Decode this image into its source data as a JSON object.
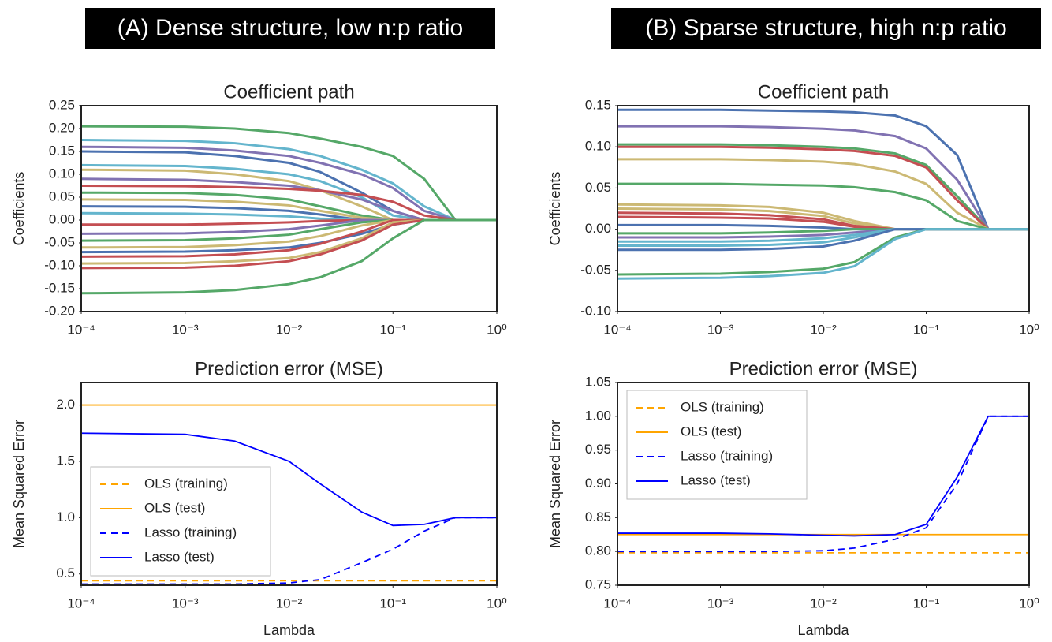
{
  "panel_titles": [
    "(A) Dense structure, low n:p ratio",
    "(B) Sparse structure, high n:p ratio"
  ],
  "chart_data": [
    {
      "type": "line",
      "title": "Coefficient path",
      "ylabel": "Coefficients",
      "xscale": "log",
      "xlim": [
        0.0001,
        1
      ],
      "xticks": [
        {
          "value": 0.0001,
          "label": "10⁻⁴"
        },
        {
          "value": 0.001,
          "label": "10⁻³"
        },
        {
          "value": 0.01,
          "label": "10⁻²"
        },
        {
          "value": 0.1,
          "label": "10⁻¹"
        },
        {
          "value": 1,
          "label": "10⁰"
        }
      ],
      "ylim": [
        -0.2,
        0.25
      ],
      "yticks": [
        {
          "value": -0.2,
          "label": "-0.20"
        },
        -0.15,
        {
          "value": -0.1,
          "label": "-0.10"
        },
        -0.05,
        {
          "value": 0,
          "label": "0.00"
        },
        0.05,
        {
          "value": 0.1,
          "label": "0.10"
        },
        0.15,
        {
          "value": 0.2,
          "label": "0.20"
        },
        0.25
      ],
      "x": [
        0.0001,
        0.001,
        0.003,
        0.01,
        0.02,
        0.05,
        0.1,
        0.2,
        0.4,
        1
      ],
      "series": [
        {
          "color": "#55a868",
          "values": [
            0.205,
            0.204,
            0.2,
            0.19,
            0.178,
            0.16,
            0.14,
            0.09,
            0,
            0
          ]
        },
        {
          "color": "#64b5cd",
          "values": [
            0.175,
            0.173,
            0.168,
            0.155,
            0.14,
            0.11,
            0.08,
            0.03,
            0,
            0
          ]
        },
        {
          "color": "#8172b2",
          "values": [
            0.16,
            0.158,
            0.152,
            0.14,
            0.125,
            0.1,
            0.07,
            0.02,
            0,
            0
          ]
        },
        {
          "color": "#4c72b0",
          "values": [
            0.15,
            0.148,
            0.14,
            0.125,
            0.105,
            0.06,
            0.02,
            0,
            0,
            0
          ]
        },
        {
          "color": "#64b5cd",
          "values": [
            0.12,
            0.118,
            0.112,
            0.1,
            0.085,
            0.05,
            0.01,
            0,
            0,
            0
          ]
        },
        {
          "color": "#ccb974",
          "values": [
            0.11,
            0.108,
            0.1,
            0.085,
            0.065,
            0.03,
            0,
            0,
            0,
            0
          ]
        },
        {
          "color": "#8172b2",
          "values": [
            0.09,
            0.088,
            0.083,
            0.075,
            0.065,
            0.045,
            0.02,
            0,
            0,
            0
          ]
        },
        {
          "color": "#c44e52",
          "values": [
            0.075,
            0.074,
            0.072,
            0.068,
            0.064,
            0.055,
            0.04,
            0.01,
            0,
            0
          ]
        },
        {
          "color": "#55a868",
          "values": [
            0.06,
            0.059,
            0.055,
            0.045,
            0.03,
            0.01,
            0,
            0,
            0,
            0
          ]
        },
        {
          "color": "#ccb974",
          "values": [
            0.045,
            0.044,
            0.04,
            0.032,
            0.02,
            0.005,
            0,
            0,
            0,
            0
          ]
        },
        {
          "color": "#4c72b0",
          "values": [
            0.03,
            0.029,
            0.026,
            0.02,
            0.012,
            0,
            0,
            0,
            0,
            0
          ]
        },
        {
          "color": "#64b5cd",
          "values": [
            0.015,
            0.014,
            0.012,
            0.008,
            0.003,
            0,
            0,
            0,
            0,
            0
          ]
        },
        {
          "color": "#c44e52",
          "values": [
            -0.01,
            -0.01,
            -0.008,
            -0.005,
            -0.002,
            0,
            0,
            0,
            0,
            0
          ]
        },
        {
          "color": "#8172b2",
          "values": [
            -0.03,
            -0.029,
            -0.026,
            -0.02,
            -0.012,
            0,
            0,
            0,
            0,
            0
          ]
        },
        {
          "color": "#55a868",
          "values": [
            -0.045,
            -0.044,
            -0.04,
            -0.032,
            -0.02,
            -0.005,
            0,
            0,
            0,
            0
          ]
        },
        {
          "color": "#ccb974",
          "values": [
            -0.06,
            -0.059,
            -0.055,
            -0.047,
            -0.035,
            -0.012,
            0,
            0,
            0,
            0
          ]
        },
        {
          "color": "#4c72b0",
          "values": [
            -0.07,
            -0.069,
            -0.066,
            -0.06,
            -0.05,
            -0.03,
            -0.01,
            0,
            0,
            0
          ]
        },
        {
          "color": "#c44e52",
          "values": [
            -0.08,
            -0.079,
            -0.075,
            -0.066,
            -0.052,
            -0.025,
            0,
            0,
            0,
            0
          ]
        },
        {
          "color": "#ccb974",
          "values": [
            -0.095,
            -0.094,
            -0.09,
            -0.083,
            -0.07,
            -0.04,
            -0.005,
            0,
            0,
            0
          ]
        },
        {
          "color": "#c44e52",
          "values": [
            -0.105,
            -0.104,
            -0.1,
            -0.09,
            -0.075,
            -0.045,
            -0.01,
            0,
            0,
            0
          ]
        },
        {
          "color": "#55a868",
          "values": [
            -0.16,
            -0.158,
            -0.153,
            -0.14,
            -0.125,
            -0.09,
            -0.04,
            0,
            0,
            0
          ]
        }
      ]
    },
    {
      "type": "line",
      "title": "Coefficient path",
      "ylabel": "Coefficients",
      "xscale": "log",
      "xlim": [
        0.0001,
        1
      ],
      "xticks": [
        {
          "value": 0.0001,
          "label": "10⁻⁴"
        },
        {
          "value": 0.001,
          "label": "10⁻³"
        },
        {
          "value": 0.01,
          "label": "10⁻²"
        },
        {
          "value": 0.1,
          "label": "10⁻¹"
        },
        {
          "value": 1,
          "label": "10⁰"
        }
      ],
      "ylim": [
        -0.1,
        0.15
      ],
      "yticks": [
        {
          "value": -0.1,
          "label": "-0.10"
        },
        -0.05,
        {
          "value": 0,
          "label": "0.00"
        },
        0.05,
        {
          "value": 0.1,
          "label": "0.10"
        },
        0.15
      ],
      "x": [
        0.0001,
        0.001,
        0.003,
        0.01,
        0.02,
        0.05,
        0.1,
        0.2,
        0.4,
        1
      ],
      "series": [
        {
          "color": "#4c72b0",
          "values": [
            0.145,
            0.145,
            0.144,
            0.143,
            0.142,
            0.138,
            0.125,
            0.09,
            0,
            0
          ]
        },
        {
          "color": "#8172b2",
          "values": [
            0.125,
            0.125,
            0.124,
            0.122,
            0.12,
            0.113,
            0.098,
            0.06,
            0,
            0
          ]
        },
        {
          "color": "#55a868",
          "values": [
            0.103,
            0.103,
            0.102,
            0.1,
            0.098,
            0.092,
            0.078,
            0.04,
            0,
            0
          ]
        },
        {
          "color": "#c44e52",
          "values": [
            0.1,
            0.1,
            0.099,
            0.097,
            0.095,
            0.089,
            0.075,
            0.035,
            0,
            0
          ]
        },
        {
          "color": "#ccb974",
          "values": [
            0.085,
            0.085,
            0.084,
            0.082,
            0.079,
            0.07,
            0.055,
            0.02,
            0,
            0
          ]
        },
        {
          "color": "#55a868",
          "values": [
            0.055,
            0.055,
            0.054,
            0.053,
            0.051,
            0.045,
            0.035,
            0.01,
            0,
            0
          ]
        },
        {
          "color": "#ccb974",
          "values": [
            0.03,
            0.029,
            0.027,
            0.02,
            0.01,
            0,
            0,
            0,
            0,
            0
          ]
        },
        {
          "color": "#ccb974",
          "values": [
            0.025,
            0.024,
            0.022,
            0.016,
            0.007,
            0,
            0,
            0,
            0,
            0
          ]
        },
        {
          "color": "#c44e52",
          "values": [
            0.02,
            0.019,
            0.017,
            0.012,
            0.004,
            0,
            0,
            0,
            0,
            0
          ]
        },
        {
          "color": "#c44e52",
          "values": [
            0.015,
            0.014,
            0.013,
            0.009,
            0.003,
            0,
            0,
            0,
            0,
            0
          ]
        },
        {
          "color": "#4c72b0",
          "values": [
            0.005,
            0.005,
            0.004,
            0.002,
            0,
            0,
            0,
            0,
            0,
            0
          ]
        },
        {
          "color": "#55a868",
          "values": [
            -0.005,
            -0.005,
            -0.004,
            -0.002,
            0,
            0,
            0,
            0,
            0,
            0
          ]
        },
        {
          "color": "#8172b2",
          "values": [
            -0.01,
            -0.01,
            -0.009,
            -0.007,
            -0.004,
            0,
            0,
            0,
            0,
            0
          ]
        },
        {
          "color": "#64b5cd",
          "values": [
            -0.015,
            -0.015,
            -0.014,
            -0.011,
            -0.007,
            0,
            0,
            0,
            0,
            0
          ]
        },
        {
          "color": "#64b5cd",
          "values": [
            -0.02,
            -0.02,
            -0.019,
            -0.016,
            -0.01,
            0,
            0,
            0,
            0,
            0
          ]
        },
        {
          "color": "#4c72b0",
          "values": [
            -0.025,
            -0.025,
            -0.024,
            -0.021,
            -0.014,
            0,
            0,
            0,
            0,
            0
          ]
        },
        {
          "color": "#55a868",
          "values": [
            -0.055,
            -0.054,
            -0.052,
            -0.048,
            -0.04,
            -0.01,
            0,
            0,
            0,
            0
          ]
        },
        {
          "color": "#64b5cd",
          "values": [
            -0.06,
            -0.059,
            -0.057,
            -0.053,
            -0.045,
            -0.012,
            0,
            0,
            0,
            0
          ]
        }
      ]
    },
    {
      "type": "line",
      "title": "Prediction error (MSE)",
      "ylabel": "Mean Squared Error",
      "xlabel": "Lambda",
      "xscale": "log",
      "legend": "lower left",
      "xlim": [
        0.0001,
        1
      ],
      "xticks": [
        {
          "value": 0.0001,
          "label": "10⁻⁴"
        },
        {
          "value": 0.001,
          "label": "10⁻³"
        },
        {
          "value": 0.01,
          "label": "10⁻²"
        },
        {
          "value": 0.1,
          "label": "10⁻¹"
        },
        {
          "value": 1,
          "label": "10⁰"
        }
      ],
      "ylim": [
        0.4,
        2.2
      ],
      "yticks": [
        0.5,
        {
          "value": 1,
          "label": "1.0"
        },
        1.5,
        {
          "value": 2,
          "label": "2.0"
        }
      ],
      "x": [
        0.0001,
        0.001,
        0.003,
        0.01,
        0.02,
        0.05,
        0.1,
        0.2,
        0.4,
        1
      ],
      "series": [
        {
          "name": "OLS (training)",
          "color": "#ffa500",
          "dash": true,
          "values": [
            0.44,
            0.44,
            0.44,
            0.44,
            0.44,
            0.44,
            0.44,
            0.44,
            0.44,
            0.44
          ]
        },
        {
          "name": "OLS (test)",
          "color": "#ffa500",
          "dash": false,
          "values": [
            2,
            2,
            2,
            2,
            2,
            2,
            2,
            2,
            2,
            2
          ]
        },
        {
          "name": "Lasso (training)",
          "color": "#0000ff",
          "dash": true,
          "values": [
            0.41,
            0.41,
            0.41,
            0.42,
            0.45,
            0.6,
            0.72,
            0.88,
            1,
            1
          ]
        },
        {
          "name": "Lasso (test)",
          "color": "#0000ff",
          "dash": false,
          "values": [
            1.75,
            1.74,
            1.68,
            1.5,
            1.3,
            1.05,
            0.93,
            0.94,
            1,
            1
          ]
        }
      ]
    },
    {
      "type": "line",
      "title": "Prediction error (MSE)",
      "ylabel": "Mean Squared Error",
      "xlabel": "Lambda",
      "xscale": "log",
      "legend": "upper left",
      "xlim": [
        0.0001,
        1
      ],
      "xticks": [
        {
          "value": 0.0001,
          "label": "10⁻⁴"
        },
        {
          "value": 0.001,
          "label": "10⁻³"
        },
        {
          "value": 0.01,
          "label": "10⁻²"
        },
        {
          "value": 0.1,
          "label": "10⁻¹"
        },
        {
          "value": 1,
          "label": "10⁰"
        }
      ],
      "ylim": [
        0.75,
        1.05
      ],
      "yticks": [
        0.75,
        {
          "value": 0.8,
          "label": "0.80"
        },
        0.85,
        {
          "value": 0.9,
          "label": "0.90"
        },
        0.95,
        {
          "value": 1,
          "label": "1.00"
        },
        1.05
      ],
      "x": [
        0.0001,
        0.001,
        0.003,
        0.01,
        0.02,
        0.05,
        0.1,
        0.2,
        0.4,
        1
      ],
      "series": [
        {
          "name": "OLS (training)",
          "color": "#ffa500",
          "dash": true,
          "values": [
            0.798,
            0.798,
            0.798,
            0.798,
            0.798,
            0.798,
            0.798,
            0.798,
            0.798,
            0.798
          ]
        },
        {
          "name": "OLS (test)",
          "color": "#ffa500",
          "dash": false,
          "values": [
            0.825,
            0.825,
            0.825,
            0.825,
            0.825,
            0.825,
            0.825,
            0.825,
            0.825,
            0.825
          ]
        },
        {
          "name": "Lasso (training)",
          "color": "#0000ff",
          "dash": true,
          "values": [
            0.8,
            0.8,
            0.8,
            0.801,
            0.805,
            0.818,
            0.835,
            0.9,
            1,
            1
          ]
        },
        {
          "name": "Lasso (test)",
          "color": "#0000ff",
          "dash": false,
          "values": [
            0.827,
            0.827,
            0.826,
            0.824,
            0.823,
            0.825,
            0.84,
            0.91,
            1,
            1
          ]
        }
      ]
    }
  ]
}
